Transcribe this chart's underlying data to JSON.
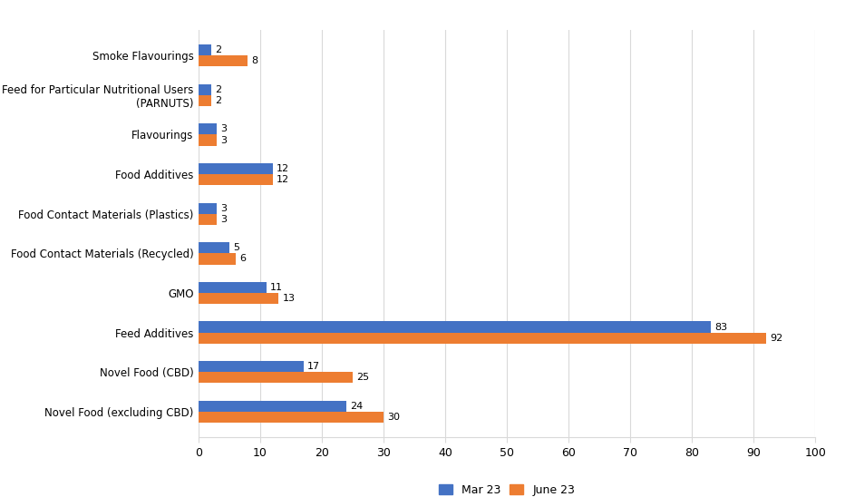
{
  "categories": [
    "Novel Food (excluding CBD)",
    "Novel Food (CBD)",
    "Feed Additives",
    "GMO",
    "Food Contact Materials (Recycled)",
    "Food Contact Materials (Plastics)",
    "Food Additives",
    "Flavourings",
    "Feed for Particular Nutritional Users\n(PARNUTS)",
    "Smoke Flavourings"
  ],
  "mar23": [
    24,
    17,
    83,
    11,
    5,
    3,
    12,
    3,
    2,
    2
  ],
  "june23": [
    30,
    25,
    92,
    13,
    6,
    3,
    12,
    3,
    2,
    8
  ],
  "color_mar": "#4472C4",
  "color_june": "#ED7D31",
  "xlim": [
    0,
    100
  ],
  "xticks": [
    0,
    10,
    20,
    30,
    40,
    50,
    60,
    70,
    80,
    90,
    100
  ],
  "legend_mar": "Mar 23",
  "legend_june": "June 23",
  "bar_height": 0.28,
  "grid_color": "#D9D9D9",
  "background_color": "#FFFFFF",
  "label_fontsize": 8.5,
  "tick_fontsize": 9,
  "legend_fontsize": 9,
  "value_fontsize": 8
}
